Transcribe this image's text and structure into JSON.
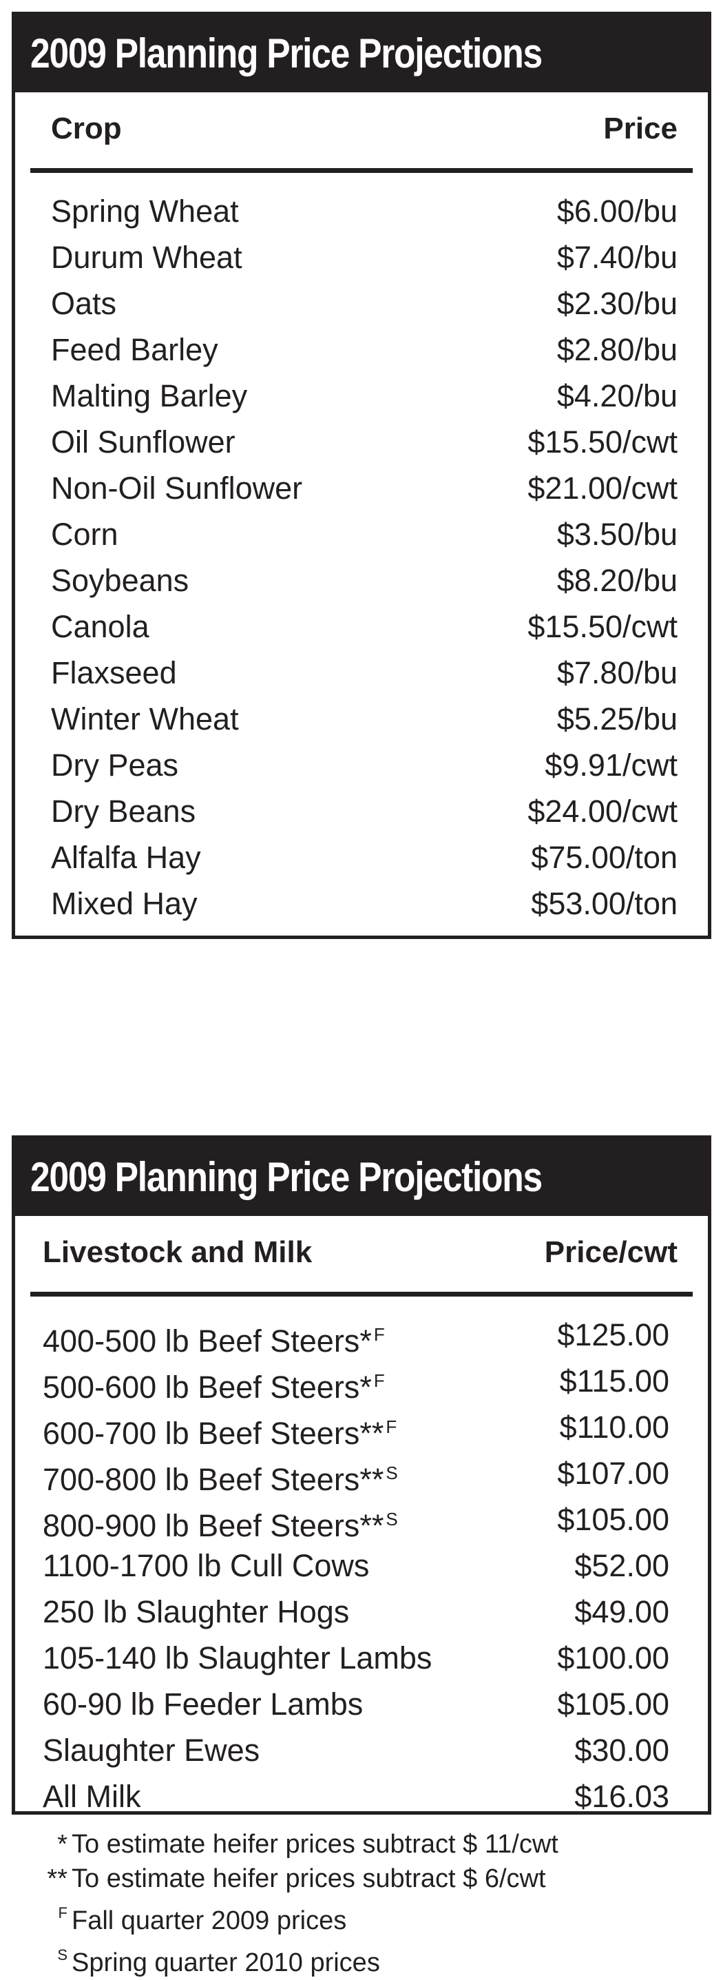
{
  "crop_table": {
    "title": "2009 Planning Price Projections",
    "header_left": "Crop",
    "header_right": "Price",
    "rows": [
      {
        "name": "Spring Wheat",
        "price": "$6.00/bu"
      },
      {
        "name": "Durum Wheat",
        "price": "$7.40/bu"
      },
      {
        "name": "Oats",
        "price": "$2.30/bu"
      },
      {
        "name": "Feed Barley",
        "price": "$2.80/bu"
      },
      {
        "name": "Malting Barley",
        "price": "$4.20/bu"
      },
      {
        "name": "Oil Sunflower",
        "price": "$15.50/cwt"
      },
      {
        "name": "Non-Oil Sunflower",
        "price": "$21.00/cwt"
      },
      {
        "name": "Corn",
        "price": "$3.50/bu"
      },
      {
        "name": "Soybeans",
        "price": "$8.20/bu"
      },
      {
        "name": "Canola",
        "price": "$15.50/cwt"
      },
      {
        "name": "Flaxseed",
        "price": "$7.80/bu"
      },
      {
        "name": "Winter Wheat",
        "price": "$5.25/bu"
      },
      {
        "name": "Dry Peas",
        "price": "$9.91/cwt"
      },
      {
        "name": "Dry Beans",
        "price": "$24.00/cwt"
      },
      {
        "name": "Alfalfa Hay",
        "price": "$75.00/ton"
      },
      {
        "name": "Mixed Hay",
        "price": "$53.00/ton"
      }
    ]
  },
  "livestock_table": {
    "title": "2009 Planning Price Projections",
    "header_left": "Livestock and Milk",
    "header_right": "Price/cwt",
    "rows": [
      {
        "name": "400-500 lb Beef Steers",
        "mark": "*",
        "sup": "F",
        "price": "$125.00"
      },
      {
        "name": "500-600 lb Beef Steers",
        "mark": "*",
        "sup": "F",
        "price": "$115.00"
      },
      {
        "name": "600-700 lb Beef Steers",
        "mark": "**",
        "sup": "F",
        "price": "$110.00"
      },
      {
        "name": "700-800 lb Beef Steers",
        "mark": "**",
        "sup": "S",
        "price": "$107.00"
      },
      {
        "name": "800-900 lb Beef Steers",
        "mark": "**",
        "sup": "S",
        "price": "$105.00"
      },
      {
        "name": "1100-1700 lb Cull Cows",
        "mark": "",
        "sup": "",
        "price": "$52.00"
      },
      {
        "name": "250 lb Slaughter Hogs",
        "mark": "",
        "sup": "",
        "price": "$49.00"
      },
      {
        "name": "105-140 lb Slaughter Lambs",
        "mark": "",
        "sup": "",
        "price": "$100.00"
      },
      {
        "name": "60-90 lb Feeder Lambs",
        "mark": "",
        "sup": "",
        "price": "$105.00"
      },
      {
        "name": "Slaughter Ewes",
        "mark": "",
        "sup": "",
        "price": "$30.00"
      },
      {
        "name": "All Milk",
        "mark": "",
        "sup": "",
        "price": "$16.03"
      }
    ]
  },
  "footnotes": [
    {
      "mark": "*",
      "superscript": false,
      "text": "To estimate heifer prices subtract $ 11/cwt"
    },
    {
      "mark": "**",
      "superscript": false,
      "text": "To estimate heifer prices subtract $ 6/cwt"
    },
    {
      "mark": "F",
      "superscript": true,
      "text": "Fall quarter 2009 prices"
    },
    {
      "mark": "S",
      "superscript": true,
      "text": "Spring quarter 2010 prices"
    }
  ],
  "colors": {
    "ink": "#231f20",
    "background": "#ffffff"
  }
}
